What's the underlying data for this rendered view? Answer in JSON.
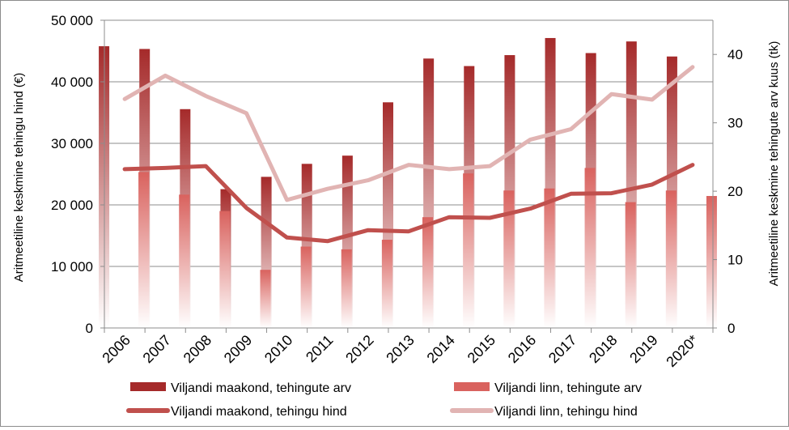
{
  "chart_data": {
    "type": "bar",
    "categories": [
      "2006",
      "2007",
      "2008",
      "2009",
      "2010",
      "2011",
      "2012",
      "2013",
      "2014",
      "2015",
      "2016",
      "2017",
      "2018",
      "2019",
      "2020*"
    ],
    "ylabel_left": "Aritmeetiline keskmine tehingu hind (€)",
    "ylabel_right": "Aritmeetiline keskmine tehingute arv kuus (tk)",
    "ylim_left": [
      0,
      50000
    ],
    "ylim_right": [
      0,
      45
    ],
    "yticks_left": [
      "0",
      "10 000",
      "20 000",
      "30 000",
      "40 000",
      "50 000"
    ],
    "yticks_right": [
      "0",
      "10",
      "20",
      "30",
      "40"
    ],
    "grid": true,
    "legend_position": "bottom",
    "series": [
      {
        "name": "Viljandi maakond, tehingute arv",
        "kind": "bar",
        "axis": "right",
        "color": "#a52a2a",
        "values": [
          41.2,
          40.8,
          32.0,
          20.3,
          22.1,
          24.0,
          25.2,
          33.0,
          39.4,
          38.3,
          39.9,
          42.4,
          40.2,
          41.9,
          39.7
        ]
      },
      {
        "name": "Viljandi linn, tehingute arv",
        "kind": "bar",
        "axis": "right",
        "color": "#d9625e",
        "values": [
          22.8,
          19.5,
          17.1,
          8.5,
          11.9,
          11.5,
          12.9,
          16.2,
          22.6,
          20.1,
          20.4,
          23.4,
          18.4,
          20.1,
          19.3
        ]
      },
      {
        "name": "Viljandi maakond, tehingu hind",
        "kind": "line",
        "axis": "left",
        "color": "#c0504d",
        "values": [
          25800,
          26000,
          26300,
          19500,
          14700,
          14100,
          15900,
          15700,
          18000,
          17900,
          19400,
          21800,
          21900,
          23300,
          26500
        ]
      },
      {
        "name": "Viljandi linn, tehingu hind",
        "kind": "line",
        "axis": "left",
        "color": "#e1b4b3",
        "values": [
          37200,
          41000,
          37700,
          34900,
          20800,
          22600,
          24000,
          26500,
          25800,
          26300,
          30600,
          32300,
          38000,
          37100,
          42400
        ]
      }
    ]
  }
}
